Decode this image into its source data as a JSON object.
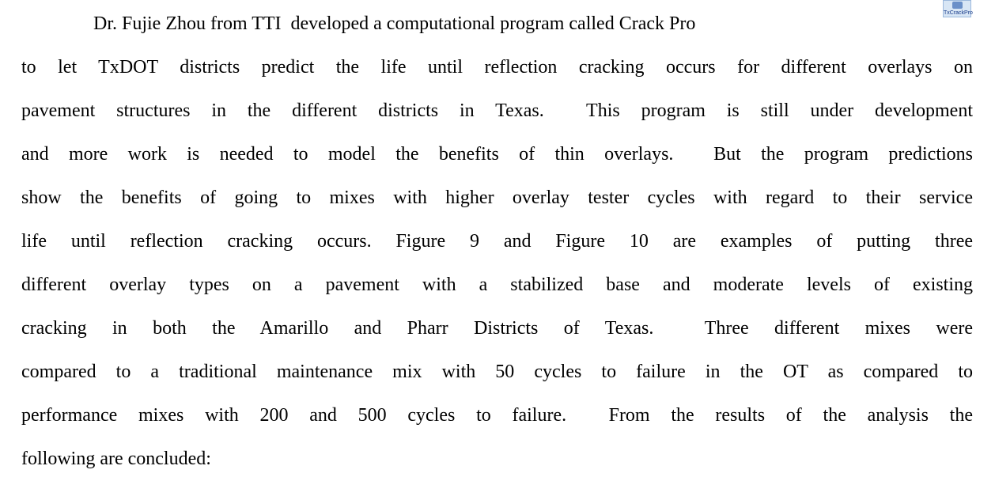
{
  "paragraph": {
    "lines": [
      "Dr. Fujie Zhou from TTI  developed a computational program called Crack Pro",
      "to let TxDOT districts predict the life until reflection cracking occurs for different overlays on",
      "pavement structures in the different districts in Texas.  This program is still under development",
      "and more work is needed to model the benefits of thin overlays.  But the program predictions",
      "show the benefits of going to mixes with higher overlay tester cycles with regard to their service",
      "life until reflection cracking occurs. Figure 9 and Figure 10 are examples of putting three",
      "different overlay types on a pavement with a stabilized base and moderate levels of existing",
      "cracking in both the Amarillo and Pharr Districts of Texas.  Three different mixes were",
      "compared to a traditional maintenance mix with 50 cycles to failure in the OT as compared to",
      "performance mixes with 200 and 500 cycles to failure.  From the results of the analysis the",
      "following are concluded:"
    ]
  },
  "icon": {
    "label": "TxCrackPro"
  }
}
